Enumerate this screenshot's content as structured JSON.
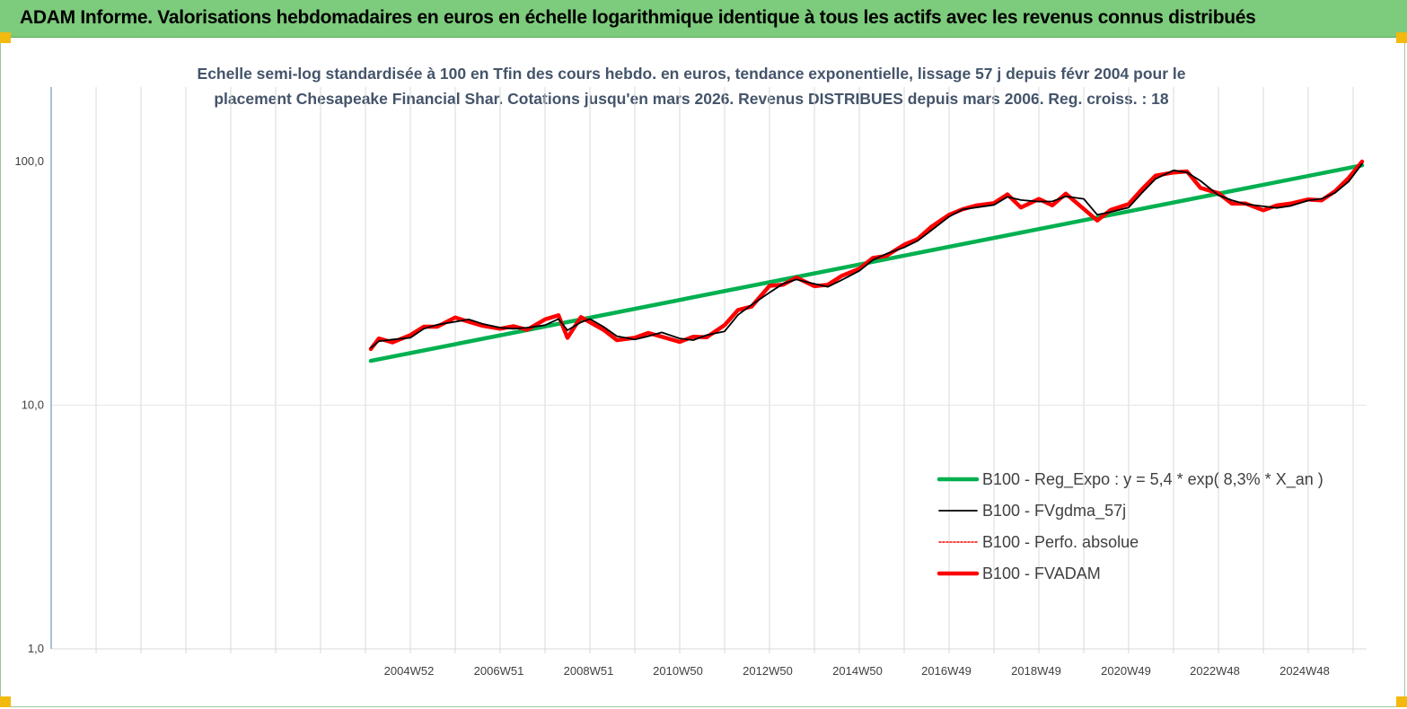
{
  "header": {
    "title": "ADAM Informe. Valorisations hebdomadaires en euros en échelle logarithmique identique à tous les actifs avec les revenus connus distribués"
  },
  "colors": {
    "header_bg": "#7dcb7c",
    "regression": "#00b050",
    "fvgdma": "#000000",
    "perfo": "#ff0000",
    "fvadam": "#ff0000",
    "corner": "#f2b90f"
  },
  "chart_data": {
    "type": "line",
    "title_line1": "Echelle semi-log standardisée à 100 en Tfin des cours hebdo. en euros, tendance exponentielle, lissage 57 j depuis févr 2004 pour le",
    "title_line2": "placement Chesapeake Financial Shar. Cotations jusqu'en mars 2026. Revenus DISTRIBUES depuis mars 2006. Reg. croiss. : 18",
    "y_scale": "log",
    "ylim": [
      1,
      100
    ],
    "y_ticks": [
      {
        "value": 100,
        "label": "100,0"
      },
      {
        "value": 10,
        "label": "10,0"
      },
      {
        "value": 1,
        "label": "1,0"
      }
    ],
    "x_tick_labels": [
      {
        "year": 2004.97,
        "label": "2004W52"
      },
      {
        "year": 2006.97,
        "label": "2006W51"
      },
      {
        "year": 2008.97,
        "label": "2008W51"
      },
      {
        "year": 2010.96,
        "label": "2010W50"
      },
      {
        "year": 2012.96,
        "label": "2012W50"
      },
      {
        "year": 2014.96,
        "label": "2014W50"
      },
      {
        "year": 2016.94,
        "label": "2016W49"
      },
      {
        "year": 2018.94,
        "label": "2018W49"
      },
      {
        "year": 2020.94,
        "label": "2020W49"
      },
      {
        "year": 2022.92,
        "label": "2022W48"
      },
      {
        "year": 2024.92,
        "label": "2024W48"
      }
    ],
    "xlim": [
      1997,
      2026.3
    ],
    "grid": "vertical",
    "legend_position": "lower-right",
    "series": [
      {
        "name": "B100 - Reg_Expo : y = 5,4 *  exp( 8,3% *  X_an )",
        "color": "#00b050",
        "style": "thick",
        "x": [
          2004.12,
          2026.2
        ],
        "y": [
          15.2,
          96.5
        ]
      },
      {
        "name": "B100 - FVgdma_57j",
        "color": "#000000",
        "style": "thin",
        "x": [
          2004.12,
          2004.3,
          2004.6,
          2005.0,
          2005.3,
          2005.6,
          2006.0,
          2006.3,
          2006.6,
          2007.0,
          2007.3,
          2007.6,
          2008.0,
          2008.3,
          2008.5,
          2008.8,
          2009.0,
          2009.3,
          2009.6,
          2010.0,
          2010.3,
          2010.6,
          2011.0,
          2011.3,
          2011.6,
          2012.0,
          2012.3,
          2012.6,
          2013.0,
          2013.3,
          2013.6,
          2014.0,
          2014.3,
          2014.6,
          2015.0,
          2015.3,
          2015.6,
          2016.0,
          2016.3,
          2016.6,
          2017.0,
          2017.3,
          2017.6,
          2018.0,
          2018.3,
          2018.6,
          2019.0,
          2019.3,
          2019.6,
          2020.0,
          2020.3,
          2020.6,
          2021.0,
          2021.3,
          2021.6,
          2022.0,
          2022.3,
          2022.6,
          2023.0,
          2023.3,
          2023.6,
          2024.0,
          2024.3,
          2024.6,
          2025.0,
          2025.3,
          2025.6,
          2025.9,
          2026.2
        ],
        "y": [
          17.2,
          18.3,
          18.6,
          18.9,
          20.6,
          21.4,
          22.0,
          22.5,
          21.6,
          20.8,
          20.6,
          20.8,
          21.3,
          22.6,
          20.3,
          21.9,
          22.6,
          21.0,
          19.2,
          18.6,
          19.2,
          19.9,
          18.8,
          18.5,
          19.4,
          20.1,
          23.5,
          25.8,
          29.0,
          31.5,
          32.8,
          31.5,
          30.6,
          32.6,
          35.6,
          39.4,
          41.8,
          44.4,
          47.3,
          52.1,
          59.4,
          63.6,
          64.8,
          66.4,
          71.6,
          69.5,
          68.5,
          68.6,
          71.9,
          70.3,
          60.5,
          62.1,
          64.8,
          74.5,
          84.9,
          92.0,
          90.2,
          83.3,
          72.7,
          69.4,
          66.9,
          65.5,
          64.5,
          65.7,
          69.2,
          70.4,
          74.5,
          82.8,
          98.0
        ]
      },
      {
        "name": "B100 - Perfo. absolue",
        "color": "#ff0000",
        "style": "dotted",
        "x": [],
        "y": []
      },
      {
        "name": "B100 - FVADAM",
        "color": "#ff0000",
        "style": "thick",
        "x": [
          2004.12,
          2004.3,
          2004.6,
          2005.0,
          2005.3,
          2005.6,
          2006.0,
          2006.3,
          2006.6,
          2007.0,
          2007.3,
          2007.6,
          2008.0,
          2008.3,
          2008.5,
          2008.8,
          2009.0,
          2009.3,
          2009.6,
          2010.0,
          2010.3,
          2010.6,
          2011.0,
          2011.3,
          2011.6,
          2012.0,
          2012.3,
          2012.6,
          2013.0,
          2013.3,
          2013.6,
          2014.0,
          2014.3,
          2014.6,
          2015.0,
          2015.3,
          2015.6,
          2016.0,
          2016.3,
          2016.6,
          2017.0,
          2017.3,
          2017.6,
          2018.0,
          2018.3,
          2018.6,
          2019.0,
          2019.3,
          2019.6,
          2020.0,
          2020.3,
          2020.6,
          2021.0,
          2021.3,
          2021.6,
          2022.0,
          2022.3,
          2022.6,
          2023.0,
          2023.3,
          2023.6,
          2024.0,
          2024.3,
          2024.6,
          2025.0,
          2025.3,
          2025.6,
          2025.9,
          2026.2
        ],
        "y": [
          17.0,
          18.8,
          18.1,
          19.4,
          21.0,
          21.0,
          22.9,
          22.0,
          21.2,
          20.6,
          21.1,
          20.4,
          22.5,
          23.4,
          18.9,
          23.0,
          21.9,
          20.4,
          18.5,
          18.9,
          19.8,
          19.1,
          18.2,
          19.1,
          19.0,
          21.3,
          24.6,
          25.4,
          30.9,
          31.2,
          33.4,
          30.8,
          31.2,
          33.9,
          36.3,
          40.2,
          41.0,
          45.6,
          48.1,
          53.9,
          60.5,
          63.7,
          66.0,
          67.5,
          73.3,
          64.8,
          70.2,
          66.1,
          73.8,
          63.9,
          57.3,
          63.3,
          66.9,
          77.1,
          87.5,
          90.2,
          91.1,
          78.0,
          74.1,
          67.2,
          67.3,
          63.1,
          66.1,
          67.2,
          69.9,
          69.3,
          75.6,
          85.6,
          100.0
        ]
      }
    ]
  }
}
